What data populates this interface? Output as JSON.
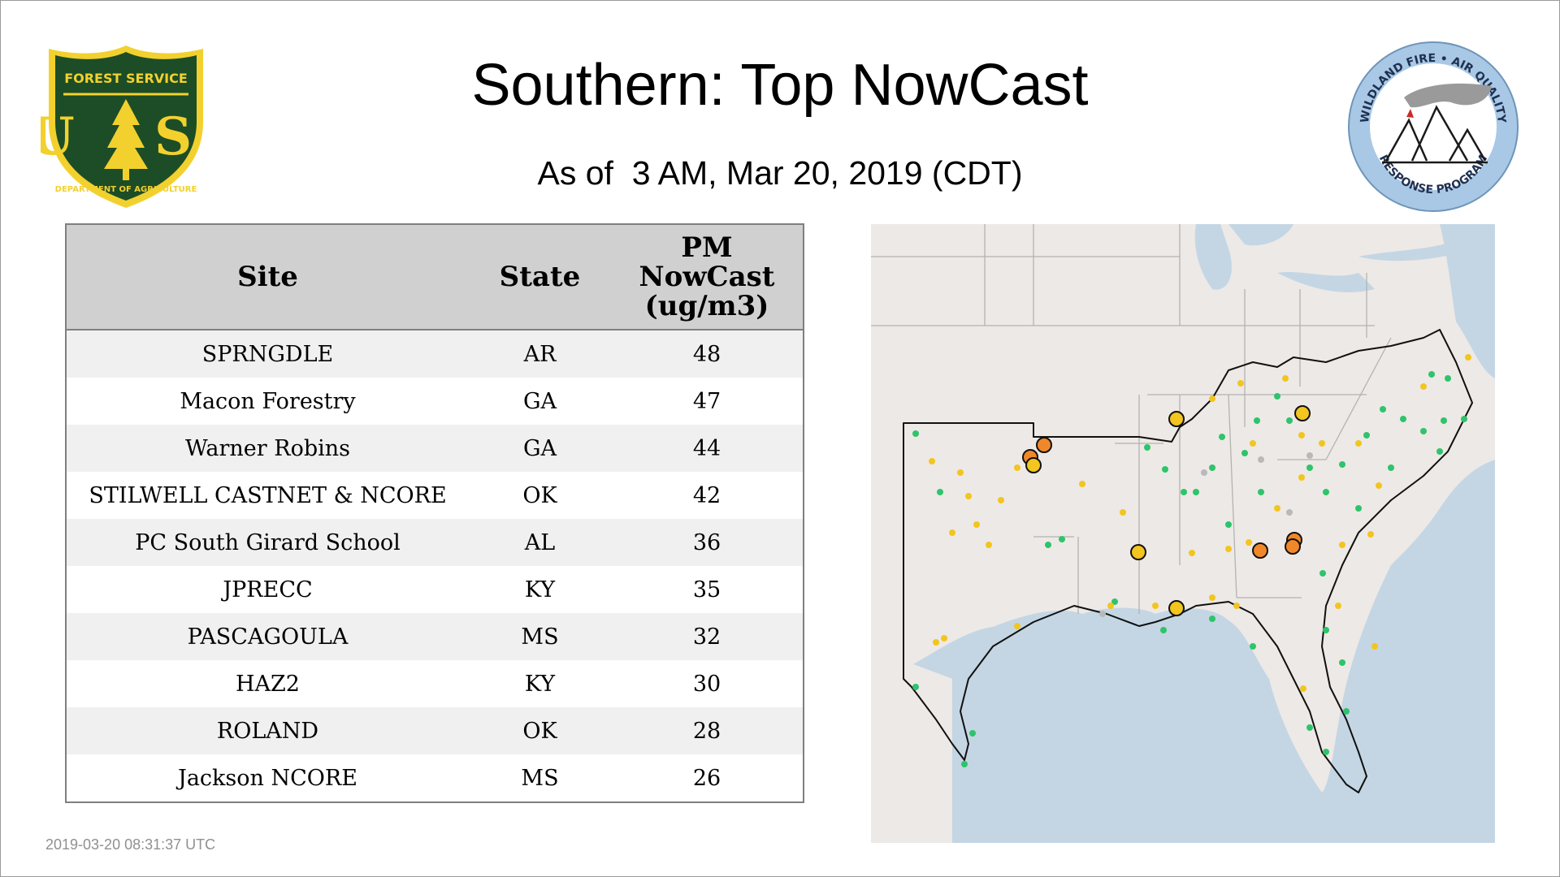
{
  "header": {
    "title": "Southern: Top NowCast",
    "subtitle": "As of  3 AM, Mar 20, 2019 (CDT)"
  },
  "logos": {
    "forest_service": {
      "top_text": "FOREST SERVICE",
      "letters": "U S",
      "bottom_text": "DEPARTMENT OF AGRICULTURE",
      "colors": {
        "shield": "#1d4d26",
        "gold": "#f2d12e"
      }
    },
    "wildland_fire": {
      "top_text": "WILDLAND FIRE • AIR QUALITY",
      "bottom_text": "RESPONSE PROGRAM",
      "colors": {
        "ring": "#a8c8e6",
        "smoke": "#9a9a9a",
        "flame": "#cc2a2a"
      }
    }
  },
  "table": {
    "headers": {
      "site": "Site",
      "state": "State",
      "value_line1": "PM",
      "value_line2": "NowCast",
      "value_line3": "(ug/m3)"
    },
    "rows": [
      {
        "site": "SPRNGDLE",
        "state": "AR",
        "value": "48"
      },
      {
        "site": "Macon Forestry",
        "state": "GA",
        "value": "47"
      },
      {
        "site": "Warner Robins",
        "state": "GA",
        "value": "44"
      },
      {
        "site": "STILWELL CASTNET & NCORE",
        "state": "OK",
        "value": "42"
      },
      {
        "site": "PC South Girard School",
        "state": "AL",
        "value": "36"
      },
      {
        "site": "JPRECC",
        "state": "KY",
        "value": "35"
      },
      {
        "site": "PASCAGOULA",
        "state": "MS",
        "value": "32"
      },
      {
        "site": "HAZ2",
        "state": "KY",
        "value": "30"
      },
      {
        "site": "ROLAND",
        "state": "OK",
        "value": "28"
      },
      {
        "site": "Jackson NCORE",
        "state": "MS",
        "value": "26"
      }
    ]
  },
  "map": {
    "colors": {
      "land": "#ede9e6",
      "water": "#c4d6e4",
      "borders": "#b3b3b3",
      "region_outline": "#111111",
      "good": "#2ec46b",
      "moderate": "#f2c51f",
      "usg": "#f0882a",
      "no_data": "#b9b9b9"
    }
  },
  "footer": {
    "timestamp": "2019-03-20 08:31:37 UTC"
  }
}
